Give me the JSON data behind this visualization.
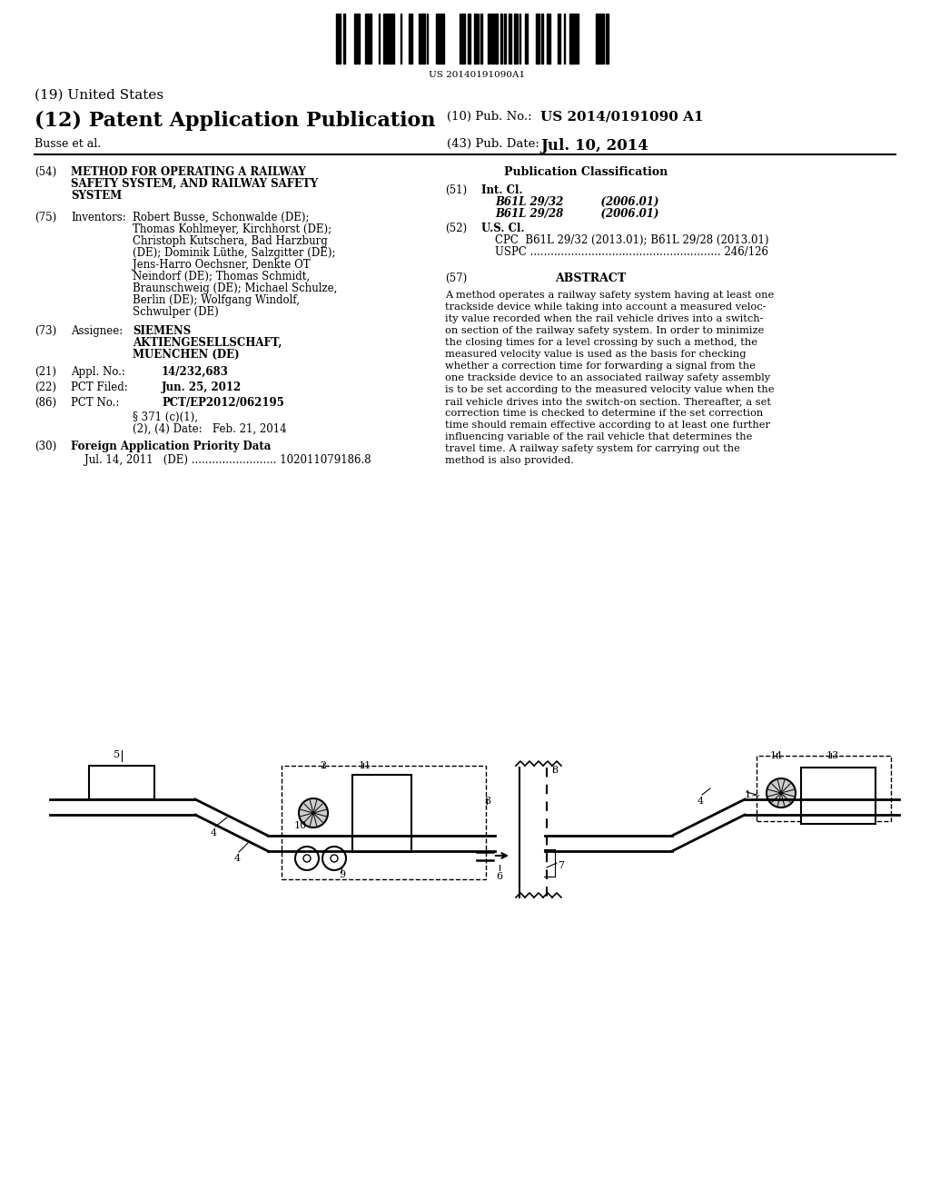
{
  "bg_color": "#ffffff",
  "barcode_text": "US 20140191090A1",
  "header_19": "(19) United States",
  "header_12": "(12) Patent Application Publication",
  "pub_no_label": "(10) Pub. No.:",
  "pub_no": "US 2014/0191090 A1",
  "author": "Busse et al.",
  "pub_date_label": "(43) Pub. Date:",
  "pub_date": "Jul. 10, 2014",
  "section_54_label": "(54)",
  "section_54": "METHOD FOR OPERATING A RAILWAY\nSAFETY SYSTEM, AND RAILWAY SAFETY\nSYSTEM",
  "section_75_label": "(75)",
  "section_75_title": "Inventors:",
  "section_75_text": "Robert Busse, Schonwalde (DE);\nThomas Kohlmeyer, Kirchhorst (DE);\nChristoph Kutschera, Bad Harzburg\n(DE); Dominik Lüthe, Salzgitter (DE);\nJens-Harro Oechsner, Denkte OT\nNeindorf (DE); Thomas Schmidt,\nBraunschweig (DE); Michael Schulze,\nBerlin (DE); Wolfgang Windolf,\nSchwulper (DE)",
  "section_73_label": "(73)",
  "section_73_title": "Assignee:",
  "section_73_text": "SIEMENS\nAKTIENGESELLSCHAFT,\nMUENCHEN (DE)",
  "section_21_label": "(21)",
  "section_21_title": "Appl. No.:",
  "section_21_text": "14/232,683",
  "section_22_label": "(22)",
  "section_22_title": "PCT Filed:",
  "section_22_text": "Jun. 25, 2012",
  "section_86_label": "(86)",
  "section_86_title": "PCT No.:",
  "section_86_text": "PCT/EP2012/062195",
  "section_86b_text": "§ 371 (c)(1),\n(2), (4) Date:   Feb. 21, 2014",
  "section_30_label": "(30)",
  "section_30_title": "Foreign Application Priority Data",
  "section_30_text": "Jul. 14, 2011   (DE) ......................... 102011079186.8",
  "pub_class_title": "Publication Classification",
  "section_51_label": "(51)",
  "section_51_title": "Int. Cl.",
  "section_51_text": "B61L 29/32          (2006.01)\nB61L 29/28          (2006.01)",
  "section_52_label": "(52)",
  "section_52_title": "U.S. Cl.",
  "section_52_text": "CPC  B61L 29/32 (2013.01); B61L 29/28 (2013.01)\nUSPC ........................................................ 246/126",
  "section_57_label": "(57)",
  "section_57_title": "ABSTRACT",
  "abstract_text": "A method operates a railway safety system having at least one\ntrackside device while taking into account a measured veloc-\nity value recorded when the rail vehicle drives into a switch-\non section of the railway safety system. In order to minimize\nthe closing times for a level crossing by such a method, the\nmeasured velocity value is used as the basis for checking\nwhether a correction time for forwarding a signal from the\none trackside device to an associated railway safety assembly\nis to be set according to the measured velocity value when the\nrail vehicle drives into the switch-on section. Thereafter, a set\ncorrection time is checked to determine if the set correction\ntime should remain effective according to at least one further\ninfluencing variable of the rail vehicle that determines the\ntravel time. A railway safety system for carrying out the\nmethod is also provided."
}
